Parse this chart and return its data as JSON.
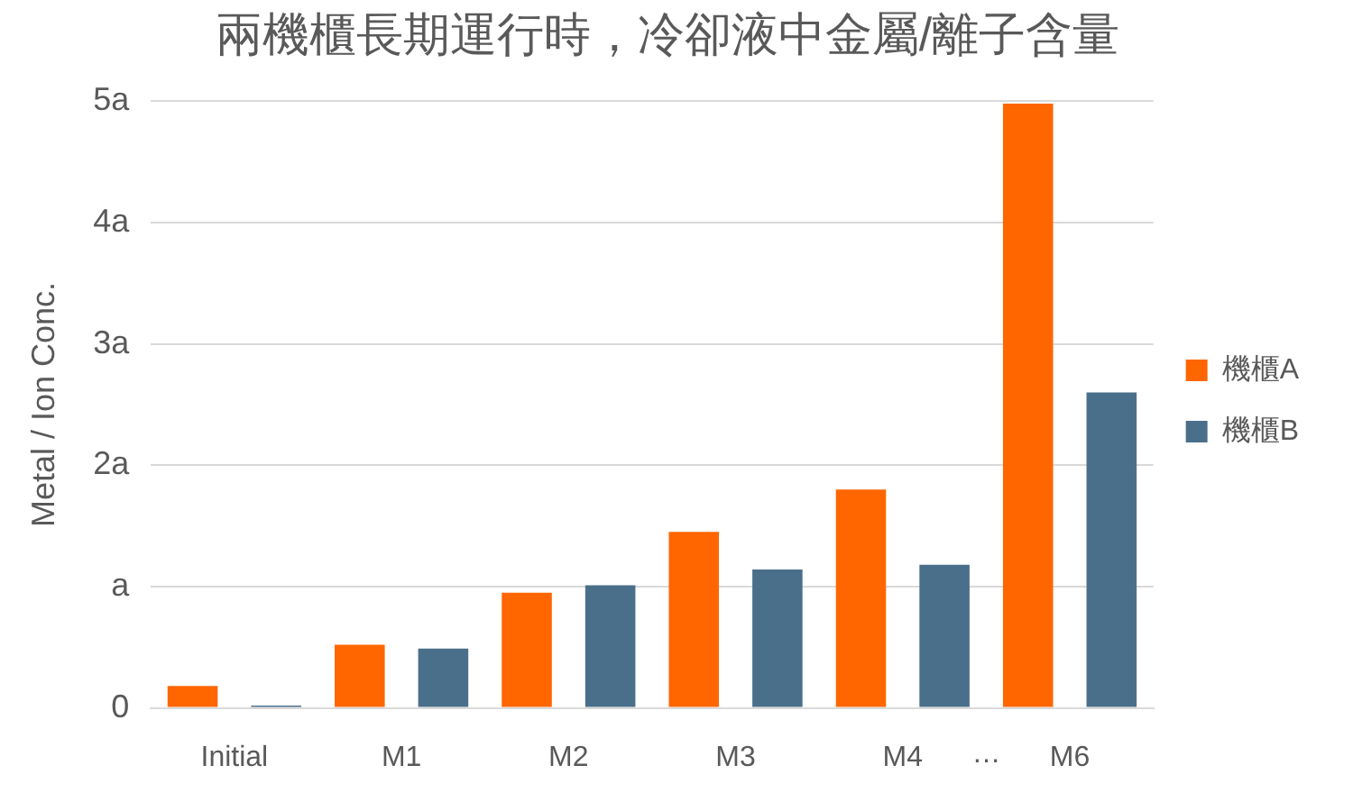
{
  "chart_data": {
    "type": "bar",
    "title": "兩機櫃長期運行時，冷卻液中金屬/離子含量",
    "ylabel": "Metal / Ion Conc.",
    "categories": [
      "Initial",
      "M1",
      "M2",
      "M3",
      "M4",
      "M6"
    ],
    "series": [
      {
        "name": "機櫃A",
        "color": "#ff6600",
        "values": [
          0.18,
          0.52,
          0.95,
          1.45,
          1.8,
          4.98
        ]
      },
      {
        "name": "機櫃B",
        "color": "#4a6f8a",
        "values": [
          0.02,
          0.49,
          1.01,
          1.14,
          1.18,
          2.6
        ]
      }
    ],
    "ylim": [
      0,
      5
    ],
    "yticks": [
      0,
      {
        "value": 1,
        "label": "a"
      },
      {
        "value": 2,
        "label": "2a"
      },
      {
        "value": 3,
        "label": "3a"
      },
      {
        "value": 4,
        "label": "4a"
      },
      {
        "value": 5,
        "label": "5a"
      }
    ],
    "grid": "y",
    "legend": "right",
    "annotations": [
      "…"
    ]
  }
}
